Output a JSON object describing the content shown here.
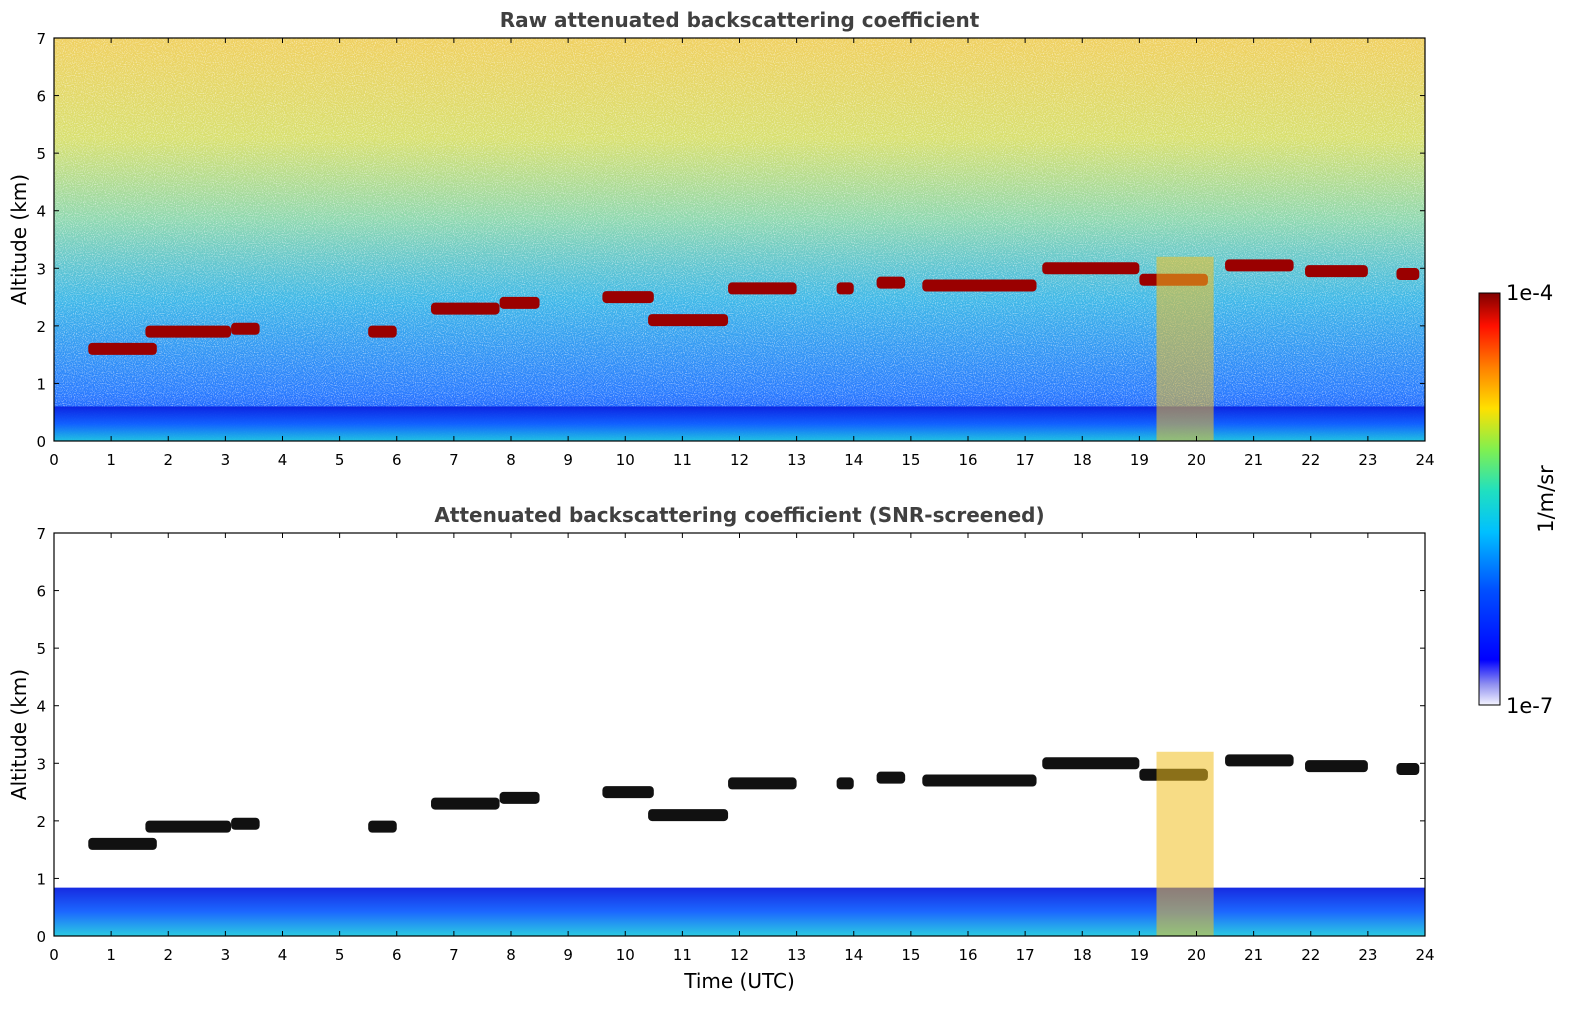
{
  "chart_data": [
    {
      "type": "heatmap",
      "title": "Raw attenuated backscattering coefficient",
      "xlabel": "",
      "ylabel": "Altitude (km)",
      "xlim": [
        0,
        24
      ],
      "ylim": [
        0,
        7
      ],
      "xticks": [
        "0",
        "1",
        "2",
        "3",
        "4",
        "5",
        "6",
        "7",
        "8",
        "9",
        "10",
        "11",
        "12",
        "13",
        "14",
        "15",
        "16",
        "17",
        "18",
        "19",
        "20",
        "21",
        "22",
        "23",
        "24"
      ],
      "yticks": [
        "0",
        "1",
        "2",
        "3",
        "4",
        "5",
        "6",
        "7"
      ],
      "cloud_layers_km": [
        {
          "start": 0.6,
          "end": 1.8,
          "altitude": 1.6
        },
        {
          "start": 1.6,
          "end": 3.1,
          "altitude": 1.9
        },
        {
          "start": 3.1,
          "end": 3.6,
          "altitude": 1.95
        },
        {
          "start": 5.5,
          "end": 6.0,
          "altitude": 1.9
        },
        {
          "start": 6.6,
          "end": 7.8,
          "altitude": 2.3
        },
        {
          "start": 7.8,
          "end": 8.5,
          "altitude": 2.4
        },
        {
          "start": 9.6,
          "end": 10.5,
          "altitude": 2.5
        },
        {
          "start": 10.4,
          "end": 11.8,
          "altitude": 2.1
        },
        {
          "start": 11.8,
          "end": 13.0,
          "altitude": 2.65
        },
        {
          "start": 13.7,
          "end": 14.0,
          "altitude": 2.65
        },
        {
          "start": 14.4,
          "end": 14.9,
          "altitude": 2.75
        },
        {
          "start": 15.2,
          "end": 17.2,
          "altitude": 2.7
        },
        {
          "start": 17.3,
          "end": 19.0,
          "altitude": 3.0
        },
        {
          "start": 19.0,
          "end": 20.2,
          "altitude": 2.8
        },
        {
          "start": 20.5,
          "end": 21.7,
          "altitude": 3.05
        },
        {
          "start": 21.9,
          "end": 23.0,
          "altitude": 2.95
        },
        {
          "start": 23.5,
          "end": 23.9,
          "altitude": 2.9
        }
      ],
      "boundary_layer_top_km": 0.6
    },
    {
      "type": "heatmap",
      "title": "Attenuated backscattering coefficient (SNR-screened)",
      "xlabel": "Time (UTC)",
      "ylabel": "Altitude (km)",
      "xlim": [
        0,
        24
      ],
      "ylim": [
        0,
        7
      ],
      "xticks": [
        "0",
        "1",
        "2",
        "3",
        "4",
        "5",
        "6",
        "7",
        "8",
        "9",
        "10",
        "11",
        "12",
        "13",
        "14",
        "15",
        "16",
        "17",
        "18",
        "19",
        "20",
        "21",
        "22",
        "23",
        "24"
      ],
      "yticks": [
        "0",
        "1",
        "2",
        "3",
        "4",
        "5",
        "6",
        "7"
      ]
    }
  ],
  "colorbar": {
    "label": "1/m/sr",
    "max_label": "1e-4",
    "min_label": "1e-7",
    "scale": "log",
    "colormap": "jet"
  }
}
